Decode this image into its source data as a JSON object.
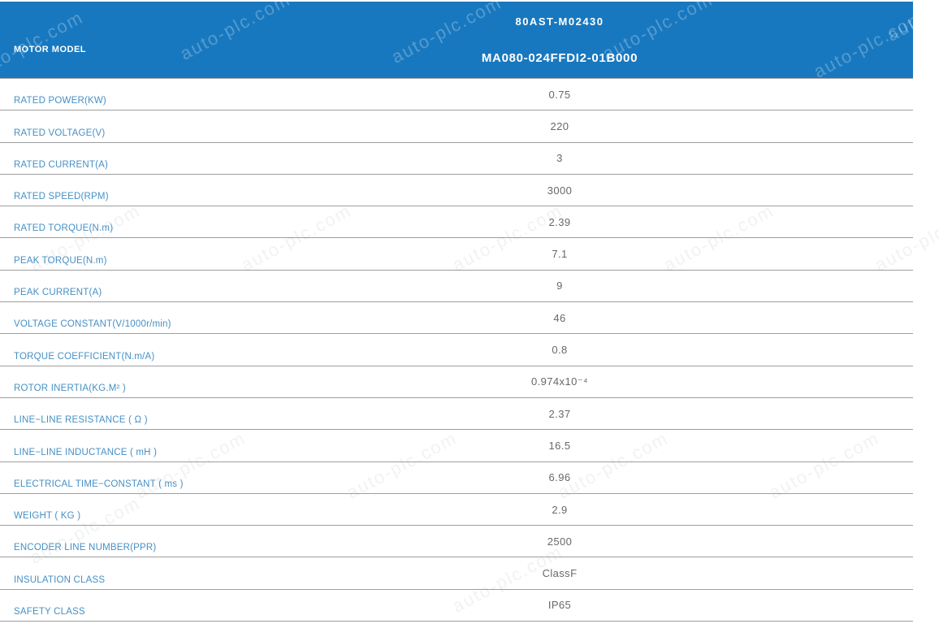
{
  "watermark": {
    "text": "auto-plc.com"
  },
  "header": {
    "row_label": "MOTOR MODEL",
    "model_top": "80AST-M02430",
    "model_bottom": "MA080-024FFDI2-01B000"
  },
  "colors": {
    "header_bg": "#1878BF",
    "label_text": "#4690C4",
    "value_text": "#686868",
    "row_border": "#9E9E9E"
  },
  "table": {
    "rows": [
      {
        "label": "RATED POWER(KW)",
        "value": "0.75"
      },
      {
        "label": "RATED VOLTAGE(V)",
        "value": "220"
      },
      {
        "label": "RATED CURRENT(A)",
        "value": "3"
      },
      {
        "label": "RATED SPEED(RPM)",
        "value": "3000"
      },
      {
        "label": "RATED TORQUE(N.m)",
        "value": "2.39"
      },
      {
        "label": "PEAK TORQUE(N.m)",
        "value": "7.1"
      },
      {
        "label": "PEAK CURRENT(A)",
        "value": "9"
      },
      {
        "label": "VOLTAGE CONSTANT(V/1000r/min)",
        "value": "46"
      },
      {
        "label": "TORQUE COEFFICIENT(N.m/A)",
        "value": "0.8"
      },
      {
        "label": "ROTOR INERTIA(KG.M² )",
        "value": "0.974x10⁻⁴"
      },
      {
        "label": "LINE−LINE RESISTANCE ( Ω )",
        "value": "2.37"
      },
      {
        "label": "LINE−LINE INDUCTANCE ( mH )",
        "value": "16.5"
      },
      {
        "label": "ELECTRICAL TIME−CONSTANT ( ms )",
        "value": "6.96"
      },
      {
        "label": "WEIGHT ( KG )",
        "value": "2.9"
      },
      {
        "label": "ENCODER LINE NUMBER(PPR)",
        "value": "2500"
      },
      {
        "label": "INSULATION CLASS",
        "value": "ClassF"
      },
      {
        "label": "SAFETY CLASS",
        "value": "IP65"
      }
    ]
  }
}
